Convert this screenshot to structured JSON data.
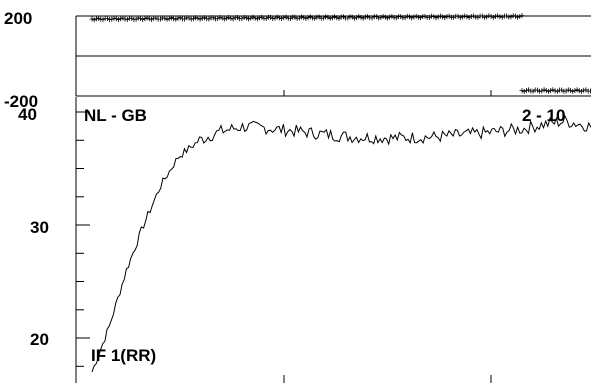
{
  "chart_data": [
    {
      "type": "scatter",
      "panel": "top",
      "ylim": [
        -200,
        200
      ],
      "y_ticks": [
        "200",
        "-200"
      ],
      "grid": false,
      "series": [
        {
          "marker": "+",
          "x": [
            0,
            1.0
          ],
          "y": [
            185,
            198
          ]
        },
        {
          "marker": "+",
          "x": [
            1.0,
            1.2
          ],
          "y": [
            -173,
            -173
          ]
        }
      ]
    },
    {
      "type": "line",
      "panel": "bottom",
      "title_left": "NL - GB",
      "title_right": "2 - 10",
      "bottom_label": "IF 1(RR)",
      "ylim": [
        16.5,
        40.5
      ],
      "y_ticks": [
        "40",
        "30",
        "20"
      ],
      "y_tick_values": [
        40,
        30,
        20
      ],
      "grid": false,
      "series": [
        {
          "x": [
            0,
            0.04,
            0.08,
            0.12,
            0.16,
            0.2,
            0.25,
            0.3,
            0.35,
            0.4,
            0.5,
            0.6,
            0.7,
            0.8,
            0.9,
            1.0,
            1.05,
            1.1,
            1.2
          ],
          "y": [
            17,
            21,
            26,
            30,
            33.5,
            36,
            37.5,
            38.3,
            38.7,
            38.6,
            38.2,
            37.8,
            37.7,
            37.8,
            38.1,
            38.5,
            38.9,
            39.2,
            38.4
          ]
        }
      ]
    }
  ]
}
